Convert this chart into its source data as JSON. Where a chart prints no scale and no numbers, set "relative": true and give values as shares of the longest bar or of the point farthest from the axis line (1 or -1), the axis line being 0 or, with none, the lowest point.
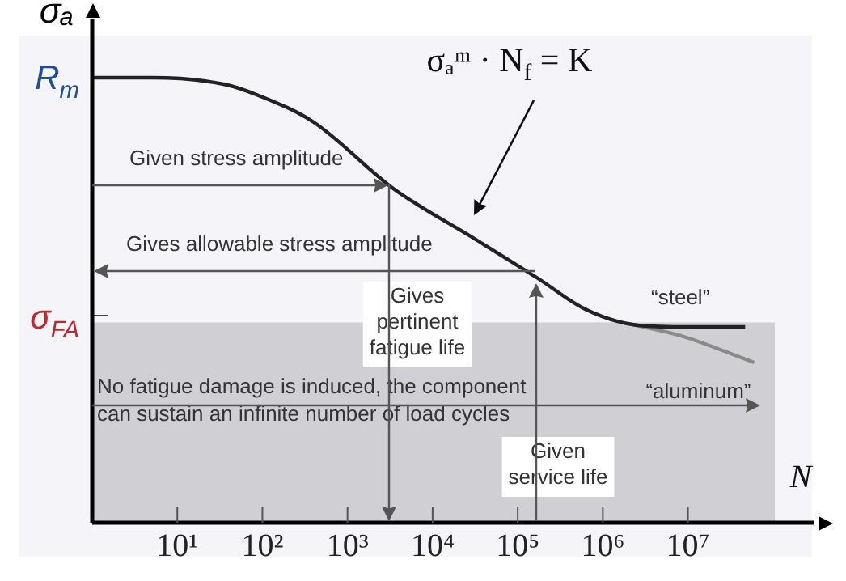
{
  "chart_data": {
    "type": "line",
    "relative": true,
    "xlabel": "N",
    "ylabel": "σₐ",
    "log": "x",
    "xlim": [
      1,
      300000000
    ],
    "xticks": [
      {
        "value": 10,
        "label": "10¹"
      },
      {
        "value": 100,
        "label": "10²"
      },
      {
        "value": 1000,
        "label": "10³"
      },
      {
        "value": 10000,
        "label": "10⁴"
      },
      {
        "value": 100000,
        "label": "10⁵"
      },
      {
        "value": 1000000,
        "label": "10⁶"
      },
      {
        "value": 10000000,
        "label": "10⁷"
      }
    ],
    "grid": false,
    "legend": false,
    "marker": "none",
    "series": [
      {
        "name": "“steel”",
        "color": "#222222",
        "x": [
          1,
          5,
          36,
          90,
          400,
          3500,
          30000,
          170000,
          620000,
          2300000,
          8300000,
          47000000
        ],
        "values": [
          1,
          1,
          0.985,
          0.96,
          0.9,
          0.75,
          0.64,
          0.55,
          0.48,
          0.445,
          0.44,
          0.44
        ]
      },
      {
        "name": "“aluminum”",
        "color": "#8a8a8a",
        "x": [
          2300000,
          8300000,
          60000000
        ],
        "values": [
          0.445,
          0.42,
          0.36
        ]
      }
    ],
    "bands": [
      {
        "axis": "y",
        "from": 0,
        "to": 0.45,
        "color": "#cfcfd4"
      }
    ],
    "annotations": [
      "σₐᵐ · N$_{f}$ = K",
      "Given stress amplitude",
      "Gives allowable stress amplitude",
      "Gives pertinent fatigue life",
      "Given service life",
      "No fatigue damage is induced, the component can sustain an infinite number of load cycles",
      "R$_{m}$",
      "σ$_{FA}$"
    ]
  }
}
